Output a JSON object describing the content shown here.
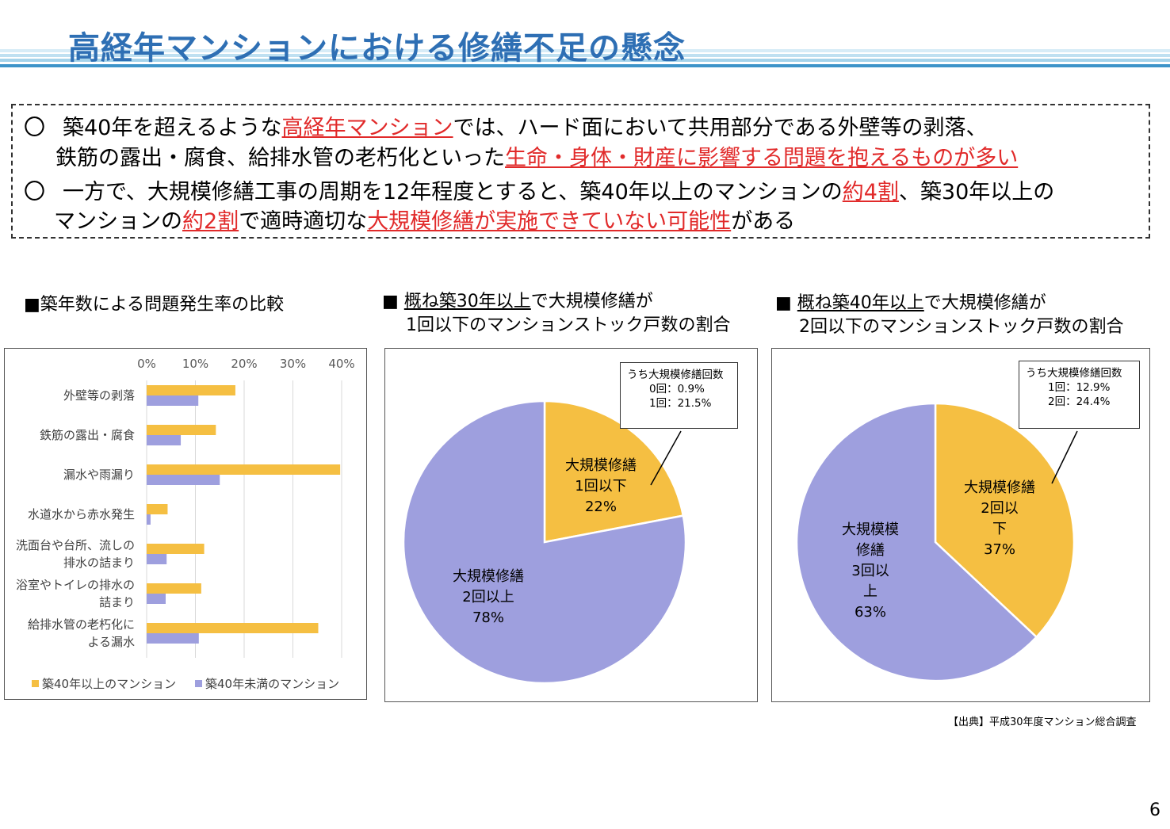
{
  "header": {
    "title": "高経年マンションにおける修繕不足の懸念"
  },
  "summary": {
    "bullet": "〇",
    "point1": {
      "line1_a": "築40年を超えるような",
      "line1_hl": "高経年マンション",
      "line1_b": "では、ハード面において共用部分である外壁等の剥落、",
      "line2_a": "鉄筋の露出・腐食、給排水管の老朽化といった",
      "line2_hl": "生命・身体・財産に影響する問題を抱えるものが多い"
    },
    "point2": {
      "line1_a": "一方で、大規模修繕工事の周期を12年程度とすると、築40年以上のマンションの",
      "line1_hl": "約4割",
      "line1_b": "、築30年以上の",
      "line2_a": "マンションの",
      "line2_hl1": "約2割",
      "line2_b": "で適時適切な",
      "line2_hl2": "大規模修繕が実施できていない可能性",
      "line2_c": "がある"
    }
  },
  "sections": {
    "bar_title": "■築年数による問題発生率の比較",
    "pie1_title_prefix": "■ ",
    "pie1_title_hl": "概ね築30年以上",
    "pie1_title_rest": "で大規模修繕が",
    "pie1_title_line2": "1回以下のマンションストック戸数の割合",
    "pie2_title_prefix": "■ ",
    "pie2_title_hl": "概ね築40年以上",
    "pie2_title_rest": "で大規模修繕が",
    "pie2_title_line2": "2回以下のマンションストック戸数の割合"
  },
  "callouts": {
    "pie1": {
      "title": "うち大規模修繕回数",
      "line1": "0回：0.9%",
      "line2": "1回：21.5%"
    },
    "pie2": {
      "title": "うち大規模修繕回数",
      "line1": "1回：12.9%",
      "line2": "2回：24.4%"
    }
  },
  "chart_data": [
    {
      "type": "bar",
      "orientation": "horizontal",
      "categories": [
        [
          "外壁等の剥落"
        ],
        [
          "鉄筋の露出・腐食"
        ],
        [
          "漏水や雨漏り"
        ],
        [
          "水道水から赤水発生"
        ],
        [
          "洗面台や台所、流しの",
          "排水の詰まり"
        ],
        [
          "浴室やトイレの排水の",
          "詰まり"
        ],
        [
          "給排水管の老朽化に",
          "よる漏水"
        ]
      ],
      "series": [
        {
          "name": "築40年以上のマンション",
          "color": "#f5bf42",
          "values": [
            18.2,
            14.2,
            39.7,
            4.3,
            11.8,
            11.2,
            35.2
          ]
        },
        {
          "name": "築40年未満のマンション",
          "color": "#9e9fde",
          "values": [
            10.6,
            7.0,
            15.0,
            0.8,
            4.1,
            3.9,
            10.7
          ]
        }
      ],
      "xlim": [
        0,
        40
      ],
      "xticks": [
        "0%",
        "10%",
        "20%",
        "30%",
        "40%"
      ],
      "grid": true,
      "legend": "bottom"
    },
    {
      "type": "pie",
      "slices": [
        {
          "label_lines": [
            "大規模修繕",
            "1回以下",
            "22%"
          ],
          "value": 22,
          "color": "#f5bf42"
        },
        {
          "label_lines": [
            "大規模修繕",
            "2回以上",
            "78%"
          ],
          "value": 78,
          "color": "#9e9fde"
        }
      ]
    },
    {
      "type": "pie",
      "slices": [
        {
          "label_lines": [
            "大規模修繕",
            "2回以",
            "下",
            "37%"
          ],
          "value": 37,
          "color": "#f5bf42"
        },
        {
          "label_lines": [
            "大規模模",
            "修繕",
            "3回以",
            "上",
            "63%"
          ],
          "value": 63,
          "color": "#9e9fde"
        }
      ]
    }
  ],
  "footer": {
    "source": "【出典】平成30年度マンション総合調査",
    "page": "6"
  }
}
